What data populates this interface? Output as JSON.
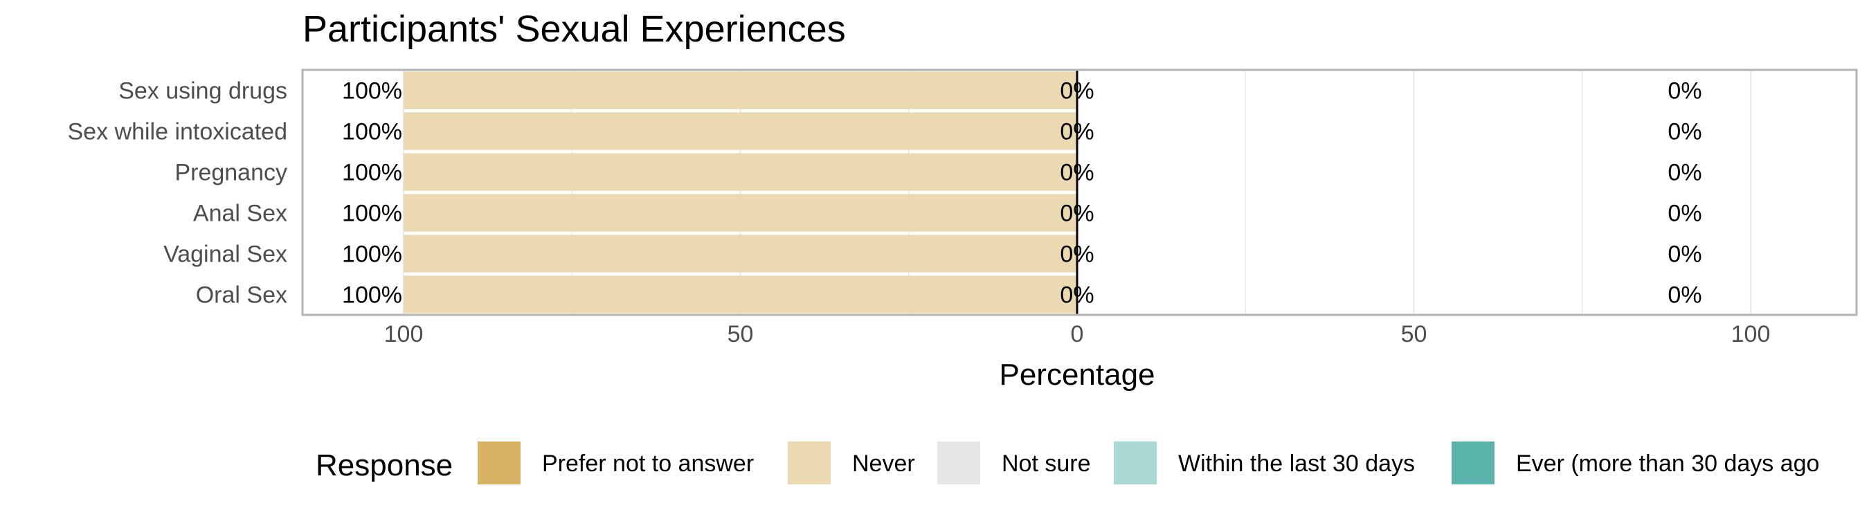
{
  "chart_data": {
    "type": "bar",
    "orientation": "horizontal",
    "stacked": "diverging",
    "title": "Participants' Sexual Experiences",
    "xlabel": "Percentage",
    "ylabel": "",
    "xlim": [
      -100,
      100
    ],
    "x_ticks": [
      -100,
      -50,
      0,
      50,
      100
    ],
    "x_tick_labels": [
      "100",
      "50",
      "0",
      "50",
      "100"
    ],
    "categories": [
      "Sex using drugs",
      "Sex while intoxicated",
      "Pregnancy",
      "Anal Sex",
      "Vaginal Sex",
      "Oral Sex"
    ],
    "series": [
      {
        "name": "Prefer not to answer",
        "side": "left",
        "color": "#D9B365",
        "values": [
          0,
          0,
          0,
          0,
          0,
          0
        ]
      },
      {
        "name": "Never",
        "side": "left",
        "color": "#EBD9B2",
        "values": [
          100,
          100,
          100,
          100,
          100,
          100
        ]
      },
      {
        "name": "Not sure",
        "side": "center",
        "color": "#E6E6E6",
        "values": [
          0,
          0,
          0,
          0,
          0,
          0
        ]
      },
      {
        "name": "Within the last 30 days",
        "side": "right",
        "color": "#AAD8D3",
        "values": [
          0,
          0,
          0,
          0,
          0,
          0
        ]
      },
      {
        "name": "Ever (more than 30 days ago",
        "side": "right",
        "color": "#5AB4AB",
        "values": [
          0,
          0,
          0,
          0,
          0,
          0
        ]
      }
    ],
    "data_labels": {
      "left": [
        "100%",
        "100%",
        "100%",
        "100%",
        "100%",
        "100%"
      ],
      "center": [
        "0%",
        "0%",
        "0%",
        "0%",
        "0%",
        "0%"
      ],
      "right": [
        "0%",
        "0%",
        "0%",
        "0%",
        "0%",
        "0%"
      ]
    },
    "legend": {
      "title": "Response",
      "position": "bottom",
      "entries": [
        "Prefer not to answer",
        "Never",
        "Not sure",
        "Within the last 30 days",
        "Ever (more than 30 days ago"
      ]
    },
    "grid": true,
    "panel_border_color": "#B3B3B3",
    "grid_color": "#EBEBEB",
    "zero_line_color": "#000000"
  }
}
